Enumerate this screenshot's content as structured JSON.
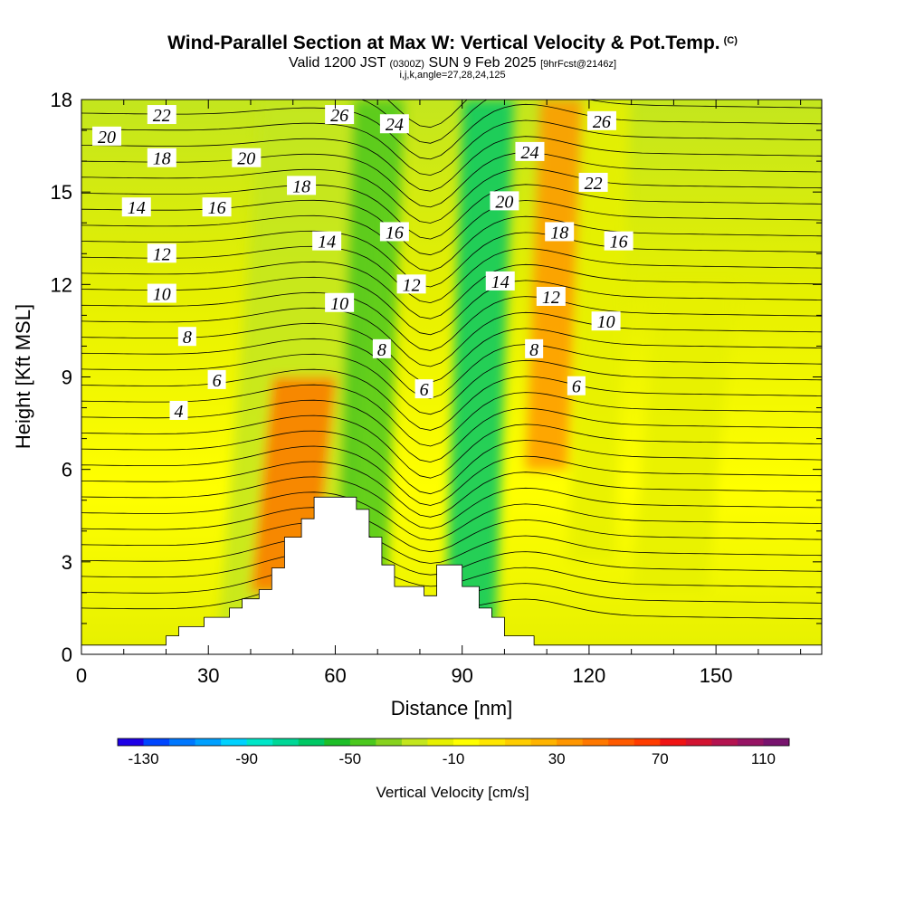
{
  "header": {
    "title": "Wind-Parallel Section at Max W: Vertical Velocity & Pot.Temp.",
    "title_mark": "(C)",
    "valid_prefix": "Valid 1200 JST",
    "valid_utc": "(0300Z)",
    "valid_date": "SUN 9 Feb 2025",
    "forecast": "[9hrFcst@2146z]",
    "indices": "i,j,k,angle=27,28,24,125"
  },
  "chart_data": {
    "type": "heatmap",
    "xlabel": "Distance [nm]",
    "ylabel": "Height [Kft MSL]",
    "xlim": [
      0,
      175
    ],
    "ylim": [
      0,
      18
    ],
    "x_ticks": [
      0,
      30,
      60,
      90,
      120,
      150
    ],
    "y_ticks": [
      0,
      3,
      6,
      9,
      12,
      15,
      18
    ],
    "colorbar": {
      "label": "Vertical Velocity [cm/s]",
      "tick_labels": [
        "-130",
        "-90",
        "-50",
        "-10",
        "30",
        "70",
        "110"
      ],
      "tick_values": [
        -130,
        -90,
        -50,
        -10,
        30,
        70,
        110
      ],
      "colors": [
        "#1e00e6",
        "#0046ff",
        "#0078ff",
        "#00a0ff",
        "#00d2ff",
        "#00e6c8",
        "#00d796",
        "#00c864",
        "#1ebe28",
        "#4bc81e",
        "#87d21e",
        "#c3e61e",
        "#e6f000",
        "#ffff00",
        "#ffe600",
        "#ffcd00",
        "#ffb400",
        "#ff9600",
        "#ff7800",
        "#ff5a00",
        "#ff3c00",
        "#f01414",
        "#d21432",
        "#b41450",
        "#961464",
        "#78146e"
      ]
    },
    "terrain_profile": [
      [
        0,
        0.3
      ],
      [
        20,
        0.3
      ],
      [
        20,
        0.6
      ],
      [
        23,
        0.6
      ],
      [
        23,
        0.9
      ],
      [
        29,
        0.9
      ],
      [
        29,
        1.2
      ],
      [
        35,
        1.2
      ],
      [
        35,
        1.5
      ],
      [
        38,
        1.5
      ],
      [
        38,
        1.8
      ],
      [
        42,
        1.8
      ],
      [
        42,
        2.1
      ],
      [
        45,
        2.1
      ],
      [
        45,
        2.8
      ],
      [
        48,
        2.8
      ],
      [
        48,
        3.8
      ],
      [
        52,
        3.8
      ],
      [
        52,
        4.4
      ],
      [
        55,
        4.4
      ],
      [
        55,
        5.1
      ],
      [
        65,
        5.1
      ],
      [
        65,
        4.7
      ],
      [
        68,
        4.7
      ],
      [
        68,
        3.8
      ],
      [
        71,
        3.8
      ],
      [
        71,
        2.9
      ],
      [
        74,
        2.9
      ],
      [
        74,
        2.2
      ],
      [
        81,
        2.2
      ],
      [
        81,
        1.9
      ],
      [
        84,
        1.9
      ],
      [
        84,
        2.9
      ],
      [
        90,
        2.9
      ],
      [
        90,
        2.2
      ],
      [
        94,
        2.2
      ],
      [
        94,
        1.5
      ],
      [
        97,
        1.5
      ],
      [
        97,
        1.2
      ],
      [
        100,
        1.2
      ],
      [
        100,
        0.6
      ],
      [
        107,
        0.6
      ],
      [
        107,
        0.3
      ],
      [
        175,
        0.3
      ]
    ],
    "w_bands": [
      {
        "x": [
          32,
          62
        ],
        "y": [
          0,
          18
        ],
        "w": -25
      },
      {
        "x": [
          60,
          72
        ],
        "y": [
          1,
          18
        ],
        "w": -50
      },
      {
        "x": [
          86,
          98
        ],
        "y": [
          1,
          18
        ],
        "w": -70
      },
      {
        "x": [
          115,
          126
        ],
        "y": [
          3,
          18
        ],
        "w": -20
      },
      {
        "x": [
          130,
          148
        ],
        "y": [
          2,
          12
        ],
        "w": -20
      },
      {
        "x": [
          40,
          55
        ],
        "y": [
          2,
          9
        ],
        "w": 40
      },
      {
        "x": [
          105,
          115
        ],
        "y": [
          6,
          18
        ],
        "w": 30
      }
    ],
    "theta_labels": [
      {
        "v": "20",
        "x": 6,
        "y": 16.8
      },
      {
        "v": "22",
        "x": 19,
        "y": 17.5
      },
      {
        "v": "26",
        "x": 61,
        "y": 17.5
      },
      {
        "v": "24",
        "x": 74,
        "y": 17.2
      },
      {
        "v": "26",
        "x": 123,
        "y": 17.3
      },
      {
        "v": "18",
        "x": 19,
        "y": 16.1
      },
      {
        "v": "20",
        "x": 39,
        "y": 16.1
      },
      {
        "v": "24",
        "x": 106,
        "y": 16.3
      },
      {
        "v": "18",
        "x": 52,
        "y": 15.2
      },
      {
        "v": "22",
        "x": 121,
        "y": 15.3
      },
      {
        "v": "14",
        "x": 13,
        "y": 14.5
      },
      {
        "v": "16",
        "x": 32,
        "y": 14.5
      },
      {
        "v": "20",
        "x": 100,
        "y": 14.7
      },
      {
        "v": "16",
        "x": 74,
        "y": 13.7
      },
      {
        "v": "18",
        "x": 113,
        "y": 13.7
      },
      {
        "v": "14",
        "x": 58,
        "y": 13.4
      },
      {
        "v": "16",
        "x": 127,
        "y": 13.4
      },
      {
        "v": "12",
        "x": 19,
        "y": 13.0
      },
      {
        "v": "12",
        "x": 78,
        "y": 12.0
      },
      {
        "v": "14",
        "x": 99,
        "y": 12.1
      },
      {
        "v": "10",
        "x": 19,
        "y": 11.7
      },
      {
        "v": "12",
        "x": 111,
        "y": 11.6
      },
      {
        "v": "10",
        "x": 61,
        "y": 11.4
      },
      {
        "v": "10",
        "x": 124,
        "y": 10.8
      },
      {
        "v": "8",
        "x": 25,
        "y": 10.3
      },
      {
        "v": "8",
        "x": 71,
        "y": 9.9
      },
      {
        "v": "8",
        "x": 107,
        "y": 9.9
      },
      {
        "v": "6",
        "x": 32,
        "y": 8.9
      },
      {
        "v": "6",
        "x": 81,
        "y": 8.6
      },
      {
        "v": "6",
        "x": 117,
        "y": 8.7
      },
      {
        "v": "4",
        "x": 23,
        "y": 7.9
      }
    ]
  }
}
